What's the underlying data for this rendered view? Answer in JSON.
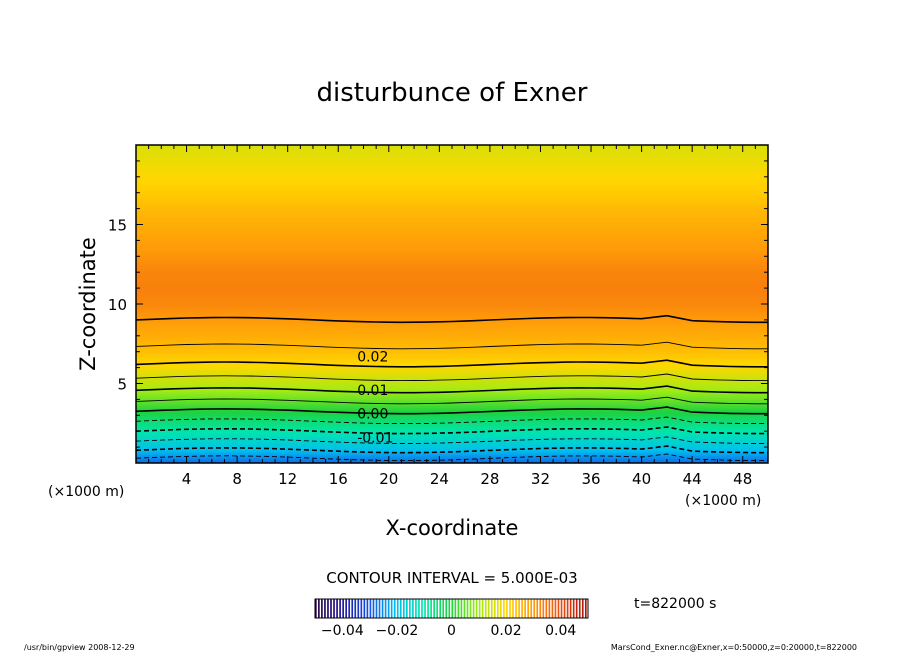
{
  "chart_data": {
    "type": "heatmap",
    "title": "disturbunce of Exner",
    "xlabel": "X-coordinate",
    "ylabel": "Z-coordinate",
    "x_unit": "(×1000 m)",
    "y_unit": "(×1000 m)",
    "xlim": [
      0,
      50
    ],
    "ylim": [
      0,
      20
    ],
    "x_ticks": [
      4,
      8,
      12,
      16,
      20,
      24,
      28,
      32,
      36,
      40,
      44,
      48
    ],
    "y_ticks": [
      5,
      10,
      15
    ],
    "contour_interval_text": "CONTOUR INTERVAL = 5.000E-03",
    "contour_labels": [
      {
        "text": "0.02",
        "x": 17.5,
        "z": 6.7
      },
      {
        "text": "0.01",
        "x": 17.5,
        "z": 4.6
      },
      {
        "text": "0.00",
        "x": 17.5,
        "z": 3.1
      },
      {
        "text": "-0.01",
        "x": 17.5,
        "z": 1.6
      }
    ],
    "colorbar": {
      "range": [
        -0.05,
        0.05
      ],
      "tick_values": [
        -0.04,
        -0.02,
        0,
        0.02,
        0.04
      ],
      "tick_labels": [
        "−0.04",
        "−0.02",
        "0",
        "0.02",
        "0.04"
      ]
    },
    "field_profile": {
      "z": [
        0,
        1,
        2,
        3,
        4,
        5,
        6,
        7,
        8,
        9,
        10,
        11,
        12,
        13,
        14,
        15,
        16,
        17,
        18,
        19,
        20
      ],
      "value": [
        -0.028,
        -0.018,
        -0.01,
        -0.002,
        0.006,
        0.013,
        0.019,
        0.024,
        0.027,
        0.03,
        0.0325,
        0.0335,
        0.033,
        0.031,
        0.029,
        0.027,
        0.025,
        0.022,
        0.02,
        0.018,
        0.016
      ]
    }
  },
  "time_label": "t=822000 s",
  "footer": {
    "left": "/usr/bin/gpview   2008-12-29",
    "right": "MarsCond_Exner.nc@Exner,x=0:50000,z=0:20000,t=822000"
  }
}
